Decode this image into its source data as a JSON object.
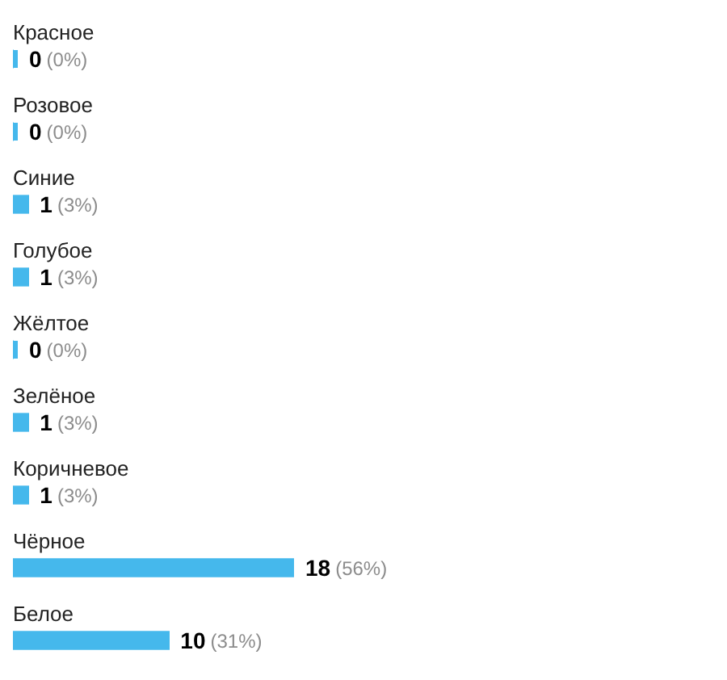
{
  "chart_data": {
    "type": "bar",
    "orientation": "horizontal",
    "categories": [
      "Красное",
      "Розовое",
      "Синие",
      "Голубое",
      "Жёлтое",
      "Зелёное",
      "Коричневое",
      "Чёрное",
      "Белое"
    ],
    "values": [
      0,
      0,
      1,
      1,
      0,
      1,
      1,
      18,
      10
    ],
    "value_labels": [
      "0 (0%)",
      "0 (0%)",
      "1 (3%)",
      "1 (3%)",
      "0 (0%)",
      "1 (3%)",
      "1 (3%)",
      "18 (56%)",
      "10 (31%)"
    ],
    "color": "#45b8ec",
    "tick_labels": "y"
  }
}
